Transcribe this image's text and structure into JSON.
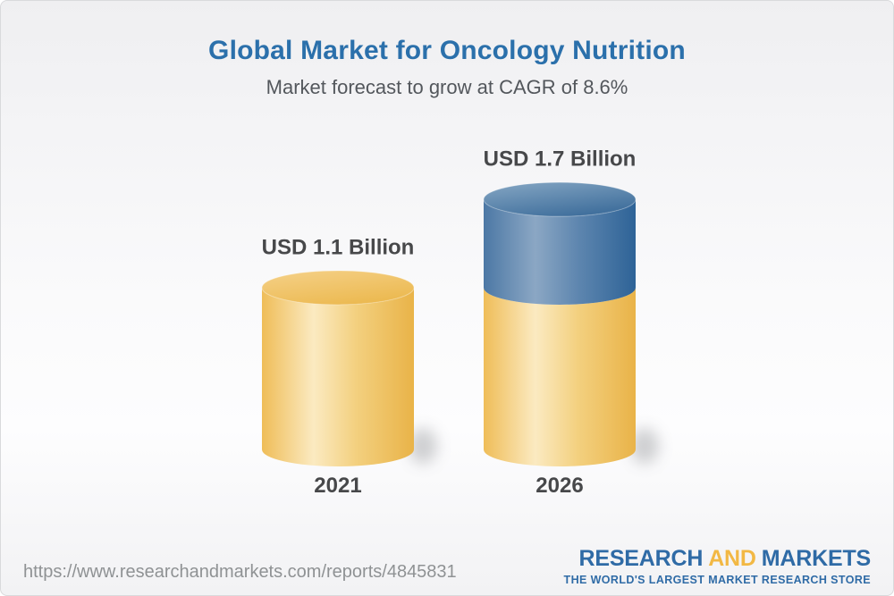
{
  "chart_data": {
    "type": "bar",
    "variant": "3d-cylinder-infographic",
    "title": "Global Market for Oncology Nutrition",
    "subtitle": "Market forecast to grow at CAGR of 8.6%",
    "cagr_percent": 8.6,
    "unit": "USD Billion",
    "categories": [
      "2021",
      "2026"
    ],
    "values": [
      1.1,
      1.7
    ],
    "value_labels": [
      "USD 1.1 Billion",
      "USD 1.7 Billion"
    ],
    "axes": "none",
    "grid": false,
    "legend": "none",
    "stacks": [
      [
        {
          "color": "gold",
          "value": 1.1
        }
      ],
      [
        {
          "color": "gold",
          "value": 1.1
        },
        {
          "color": "blue",
          "value": 0.6
        }
      ]
    ],
    "palette": {
      "gold": {
        "edgeL": "#efbd58",
        "light": "#fbeac1",
        "mid": "#f3d07f",
        "edgeR": "#e9b348",
        "topA": "#f5d189",
        "topB": "#ecba52"
      },
      "blue": {
        "edgeL": "#4c78a5",
        "light": "#8ba7c4",
        "mid": "#5e86af",
        "edgeR": "#2e6397",
        "topA": "#86a7c4",
        "topB": "#41709d"
      }
    }
  },
  "theme": {
    "title_color": "#2b70ab",
    "subtitle_color": "#53575c",
    "label_color": "#47484a",
    "url_color": "#8f9294",
    "logo_blue": "#2f6ba6",
    "logo_gold": "#f2b844",
    "shadow_color": "#97999c"
  },
  "footer": {
    "source_url": "https://www.researchandmarkets.com/reports/4845831",
    "logo": {
      "word1": "RESEARCH",
      "word2": "AND",
      "word3": "MARKETS",
      "tagline": "THE WORLD'S LARGEST MARKET RESEARCH STORE"
    }
  }
}
